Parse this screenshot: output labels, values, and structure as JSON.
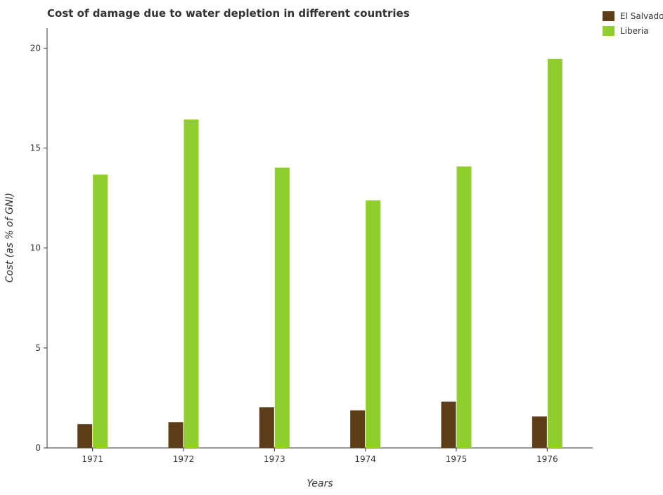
{
  "chart_data": {
    "type": "bar",
    "title": "Cost of damage due to water depletion in different countries",
    "xlabel": "Years",
    "ylabel": "Cost (as % of GNI)",
    "categories": [
      "1971",
      "1972",
      "1973",
      "1974",
      "1975",
      "1976"
    ],
    "series": [
      {
        "name": "El Salvador",
        "color": "#5c3d18",
        "values": [
          1.19,
          1.29,
          2.03,
          1.88,
          2.31,
          1.57
        ]
      },
      {
        "name": "Liberia",
        "color": "#8fce2c",
        "values": [
          13.67,
          16.43,
          14.02,
          12.38,
          14.08,
          19.46
        ]
      }
    ],
    "ylim": [
      0,
      21
    ],
    "yticks": [
      0,
      5,
      10,
      15,
      20
    ],
    "grid": false,
    "legend_position": "top-right"
  }
}
